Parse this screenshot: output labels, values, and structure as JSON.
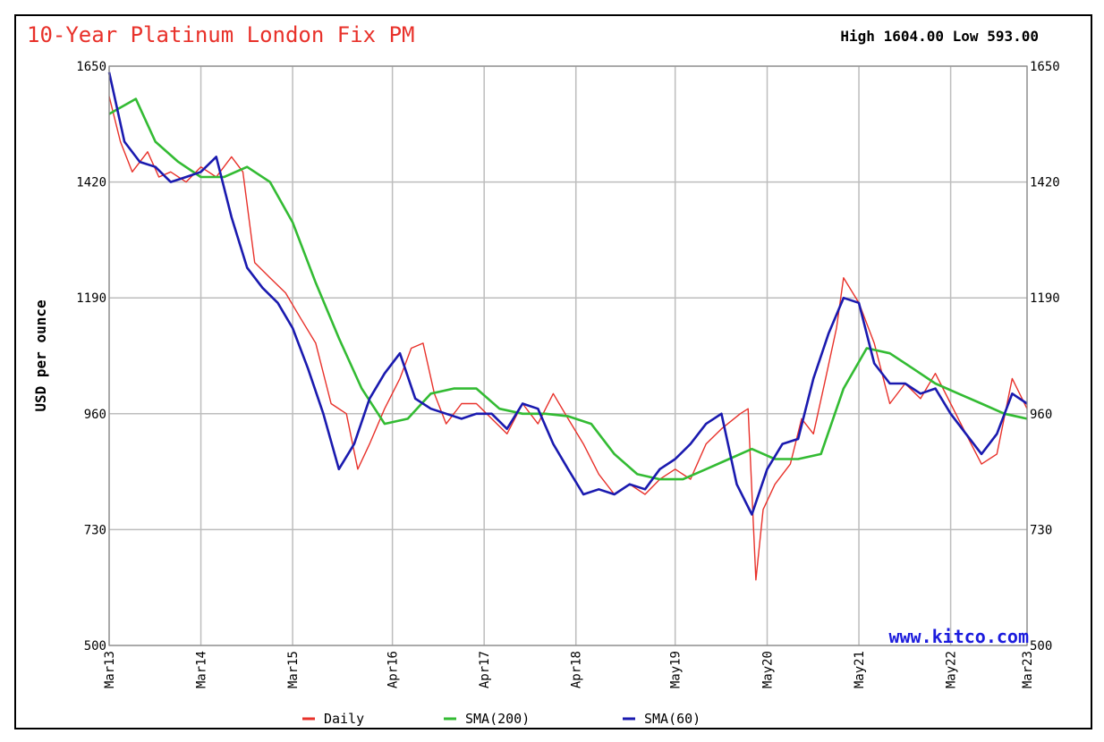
{
  "chart_data": {
    "type": "line",
    "title": "10-Year Platinum London Fix PM",
    "high_label": "High",
    "high_value": "1604.00",
    "low_label": "Low",
    "low_value": "593.00",
    "ylabel": "USD per ounce",
    "ylim": [
      500,
      1650
    ],
    "yticks": [
      500,
      730,
      960,
      1190,
      1420,
      1650
    ],
    "ytick_labels": [
      "500",
      "730",
      "960",
      "1190",
      "1420",
      "1650"
    ],
    "xlim": [
      "2013-03",
      "2023-03"
    ],
    "x_tick_labels": [
      "Mar13",
      "Mar14",
      "Mar15",
      "Apr16",
      "Apr17",
      "Apr18",
      "May19",
      "May20",
      "May21",
      "May22",
      "Mar23"
    ],
    "x_tick_dates": [
      "2013-03-01",
      "2014-03-01",
      "2015-03-01",
      "2016-04-01",
      "2017-04-01",
      "2018-04-01",
      "2019-05-01",
      "2020-05-01",
      "2021-05-01",
      "2022-05-01",
      "2023-03-01"
    ],
    "grid": true,
    "watermark": "www.kitco.com",
    "legend_position": "bottom",
    "series": [
      {
        "name": "Daily",
        "color": "#e8312a",
        "dates": [
          "2013-03-01",
          "2013-04-15",
          "2013-06-01",
          "2013-08-01",
          "2013-09-15",
          "2013-11-01",
          "2014-01-01",
          "2014-03-01",
          "2014-05-01",
          "2014-07-01",
          "2014-08-15",
          "2014-10-01",
          "2014-12-01",
          "2015-02-01",
          "2015-04-01",
          "2015-06-01",
          "2015-08-01",
          "2015-10-01",
          "2015-11-15",
          "2016-01-01",
          "2016-03-01",
          "2016-05-01",
          "2016-06-15",
          "2016-08-01",
          "2016-09-15",
          "2016-11-01",
          "2017-01-01",
          "2017-03-01",
          "2017-05-01",
          "2017-07-01",
          "2017-09-01",
          "2017-11-01",
          "2018-01-01",
          "2018-03-01",
          "2018-05-01",
          "2018-07-01",
          "2018-09-01",
          "2018-11-01",
          "2019-01-01",
          "2019-03-01",
          "2019-05-01",
          "2019-07-01",
          "2019-09-01",
          "2019-11-01",
          "2020-01-15",
          "2020-02-15",
          "2020-03-17",
          "2020-04-15",
          "2020-06-01",
          "2020-08-01",
          "2020-09-15",
          "2020-11-01",
          "2020-12-15",
          "2021-02-01",
          "2021-03-01",
          "2021-05-01",
          "2021-07-01",
          "2021-09-01",
          "2021-11-01",
          "2022-01-01",
          "2022-03-01",
          "2022-05-01",
          "2022-07-01",
          "2022-09-01",
          "2022-11-01",
          "2023-01-01",
          "2023-03-01"
        ],
        "values": [
          1590,
          1500,
          1440,
          1480,
          1430,
          1440,
          1420,
          1450,
          1430,
          1470,
          1440,
          1260,
          1230,
          1200,
          1150,
          1100,
          980,
          960,
          850,
          900,
          970,
          1030,
          1090,
          1100,
          1000,
          940,
          980,
          980,
          950,
          920,
          980,
          940,
          1000,
          950,
          900,
          840,
          800,
          820,
          800,
          830,
          850,
          830,
          900,
          930,
          960,
          970,
          630,
          770,
          820,
          860,
          950,
          920,
          1020,
          1130,
          1230,
          1180,
          1100,
          980,
          1020,
          990,
          1040,
          980,
          920,
          860,
          880,
          1030,
          970
        ]
      },
      {
        "name": "SMA(200)",
        "color": "#33bb33",
        "dates": [
          "2013-03-01",
          "2013-06-15",
          "2013-09-01",
          "2013-12-01",
          "2014-03-01",
          "2014-06-01",
          "2014-09-01",
          "2014-12-01",
          "2015-03-01",
          "2015-06-01",
          "2015-09-01",
          "2015-12-01",
          "2016-03-01",
          "2016-06-01",
          "2016-09-01",
          "2016-12-01",
          "2017-03-01",
          "2017-06-01",
          "2017-09-01",
          "2017-12-01",
          "2018-03-01",
          "2018-06-01",
          "2018-09-01",
          "2018-12-01",
          "2019-03-01",
          "2019-06-01",
          "2019-09-01",
          "2019-12-01",
          "2020-03-01",
          "2020-06-01",
          "2020-09-01",
          "2020-12-01",
          "2021-03-01",
          "2021-06-01",
          "2021-09-01",
          "2021-12-01",
          "2022-03-01",
          "2022-06-01",
          "2022-09-01",
          "2022-12-01",
          "2023-03-01"
        ],
        "values": [
          1555,
          1585,
          1500,
          1460,
          1430,
          1430,
          1450,
          1420,
          1340,
          1220,
          1110,
          1010,
          940,
          950,
          1000,
          1010,
          1010,
          970,
          960,
          960,
          955,
          940,
          880,
          840,
          830,
          830,
          850,
          870,
          890,
          870,
          870,
          880,
          1010,
          1090,
          1080,
          1050,
          1020,
          1000,
          980,
          960,
          950
        ]
      },
      {
        "name": "SMA(60)",
        "color": "#1a1aaf",
        "dates": [
          "2013-03-01",
          "2013-05-01",
          "2013-07-01",
          "2013-09-01",
          "2013-11-01",
          "2014-01-01",
          "2014-03-01",
          "2014-05-01",
          "2014-07-01",
          "2014-09-01",
          "2014-11-01",
          "2015-01-01",
          "2015-03-01",
          "2015-05-01",
          "2015-07-01",
          "2015-09-01",
          "2015-11-01",
          "2016-01-01",
          "2016-03-01",
          "2016-05-01",
          "2016-07-01",
          "2016-09-01",
          "2016-11-01",
          "2017-01-01",
          "2017-03-01",
          "2017-05-01",
          "2017-07-01",
          "2017-09-01",
          "2017-11-01",
          "2018-01-01",
          "2018-03-01",
          "2018-05-01",
          "2018-07-01",
          "2018-09-01",
          "2018-11-01",
          "2019-01-01",
          "2019-03-01",
          "2019-05-01",
          "2019-07-01",
          "2019-09-01",
          "2019-11-01",
          "2020-01-01",
          "2020-03-01",
          "2020-05-01",
          "2020-07-01",
          "2020-09-01",
          "2020-11-01",
          "2021-01-01",
          "2021-03-01",
          "2021-05-01",
          "2021-07-01",
          "2021-09-01",
          "2021-11-01",
          "2022-01-01",
          "2022-03-01",
          "2022-05-01",
          "2022-07-01",
          "2022-09-01",
          "2022-11-01",
          "2023-01-01",
          "2023-03-01"
        ],
        "values": [
          1638,
          1500,
          1460,
          1450,
          1420,
          1430,
          1440,
          1470,
          1350,
          1250,
          1210,
          1180,
          1130,
          1050,
          960,
          850,
          900,
          990,
          1040,
          1080,
          990,
          970,
          960,
          950,
          960,
          960,
          930,
          980,
          970,
          900,
          850,
          800,
          810,
          800,
          820,
          810,
          850,
          870,
          900,
          940,
          960,
          820,
          760,
          850,
          900,
          910,
          1030,
          1120,
          1190,
          1180,
          1060,
          1020,
          1020,
          1000,
          1010,
          960,
          920,
          880,
          920,
          1000,
          980
        ]
      }
    ]
  }
}
